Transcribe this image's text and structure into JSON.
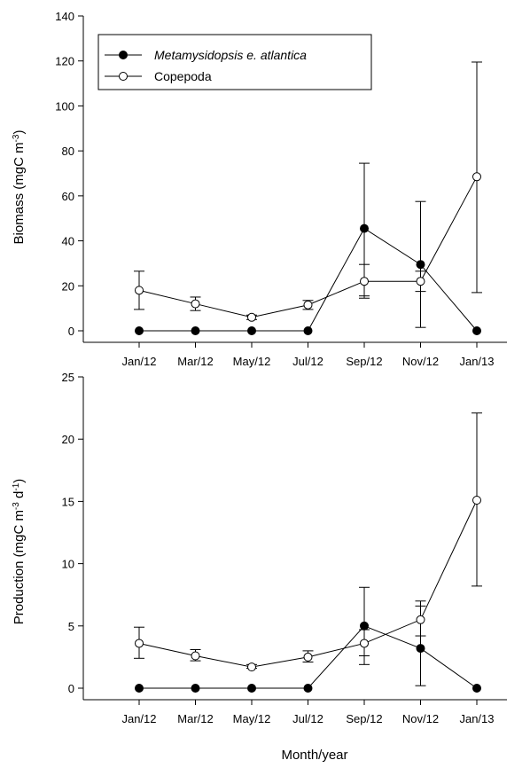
{
  "chart_data": [
    {
      "type": "line",
      "title": "",
      "ylabel": {
        "main": "Biomass (mgC m",
        "sup": "-3",
        "end": ")"
      },
      "xlabel": "",
      "categories": [
        "Jan/12",
        "Mar/12",
        "May/12",
        "Jul/12",
        "Sep/12",
        "Nov/12",
        "Jan/13"
      ],
      "ylim": [
        0,
        140
      ],
      "yticks": [
        0,
        20,
        40,
        60,
        80,
        100,
        120,
        140
      ],
      "legend": "top-left",
      "series": [
        {
          "name": "Metamysidopsis e. atlantica",
          "marker": "filled-circle",
          "values": [
            0,
            0,
            0,
            0,
            45.5,
            29.5,
            0
          ],
          "err_low": [
            0,
            0,
            0,
            0,
            14.5,
            1.5,
            0
          ],
          "err_high": [
            0,
            0,
            0,
            0,
            74.5,
            57.5,
            0
          ]
        },
        {
          "name": "Copepoda",
          "marker": "open-circle",
          "values": [
            18,
            12,
            6,
            11.5,
            22,
            22,
            68.5
          ],
          "err_low": [
            9.5,
            9,
            5,
            9.5,
            15.5,
            17.5,
            17
          ],
          "err_high": [
            26.5,
            15,
            7,
            13.5,
            29.5,
            26.5,
            119.5
          ]
        }
      ]
    },
    {
      "type": "line",
      "title": "",
      "ylabel": {
        "main": "Production (mgC m",
        "sup1": "-3",
        "mid": " d",
        "sup2": "-1",
        "end": ")"
      },
      "xlabel": "Month/year",
      "categories": [
        "Jan/12",
        "Mar/12",
        "May/12",
        "Jul/12",
        "Sep/12",
        "Nov/12",
        "Jan/13"
      ],
      "ylim": [
        0,
        25
      ],
      "yticks": [
        0,
        5,
        10,
        15,
        20,
        25
      ],
      "legend": "none",
      "series": [
        {
          "marker": "filled-circle",
          "values": [
            0,
            0,
            0,
            0,
            5,
            3.2,
            0
          ],
          "err_low": [
            0,
            0,
            0,
            0,
            1.9,
            0.2,
            0
          ],
          "err_high": [
            0,
            0,
            0,
            0,
            8.1,
            6.6,
            0
          ]
        },
        {
          "marker": "open-circle",
          "values": [
            3.6,
            2.6,
            1.7,
            2.5,
            3.6,
            5.5,
            15.1
          ],
          "err_low": [
            2.4,
            2.2,
            1.6,
            2.1,
            2.6,
            4.2,
            8.2
          ],
          "err_high": [
            4.9,
            3.1,
            1.9,
            3.0,
            4.7,
            7.0,
            22.1
          ]
        }
      ]
    }
  ]
}
